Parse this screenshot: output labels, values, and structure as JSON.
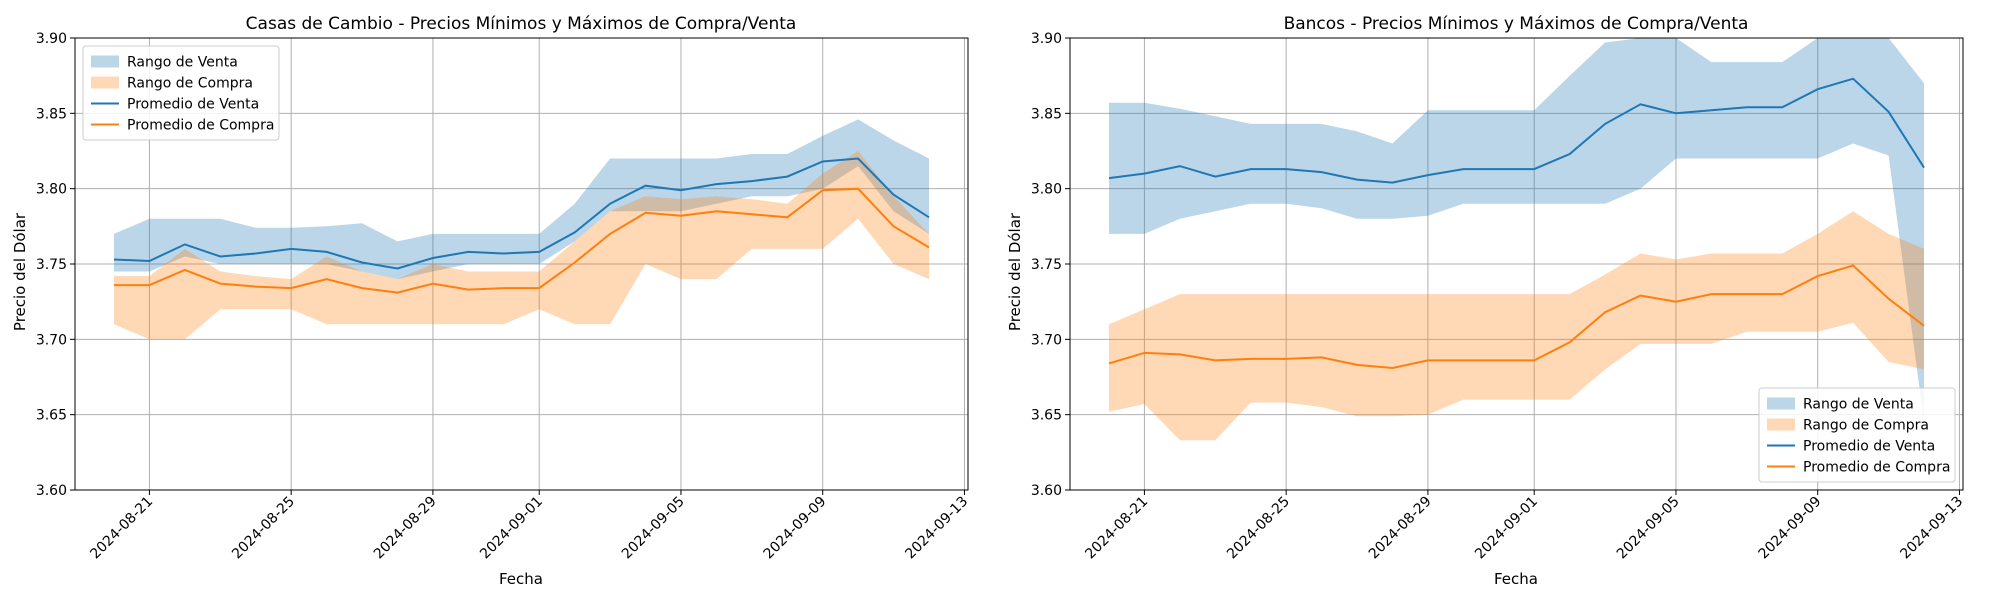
{
  "chart_data": [
    {
      "type": "area",
      "title": "Casas de Cambio - Precios Mínimos y Máximos de Compra/Venta",
      "xlabel": "Fecha",
      "ylabel": "Precio del Dólar",
      "ylim": [
        3.6,
        3.9
      ],
      "yticks": [
        "3.60",
        "3.65",
        "3.70",
        "3.75",
        "3.80",
        "3.85",
        "3.90"
      ],
      "xticks": [
        "2024-08-21",
        "2024-08-25",
        "2024-08-29",
        "2024-09-01",
        "2024-09-05",
        "2024-09-09",
        "2024-09-13"
      ],
      "grid": true,
      "legend_position": "upper-left",
      "x": [
        "2024-08-20",
        "2024-08-21",
        "2024-08-22",
        "2024-08-23",
        "2024-08-24",
        "2024-08-25",
        "2024-08-26",
        "2024-08-27",
        "2024-08-28",
        "2024-08-29",
        "2024-08-30",
        "2024-08-31",
        "2024-09-01",
        "2024-09-02",
        "2024-09-03",
        "2024-09-04",
        "2024-09-05",
        "2024-09-06",
        "2024-09-07",
        "2024-09-08",
        "2024-09-09",
        "2024-09-10",
        "2024-09-11",
        "2024-09-12"
      ],
      "bands": [
        {
          "name": "Rango de Venta",
          "color": "#1f77b4",
          "opacity": 0.3,
          "low": [
            3.745,
            3.745,
            3.755,
            3.75,
            3.75,
            3.75,
            3.75,
            3.745,
            3.74,
            3.745,
            3.75,
            3.75,
            3.75,
            3.765,
            3.785,
            3.785,
            3.785,
            3.79,
            3.795,
            3.795,
            3.8,
            3.815,
            3.785,
            3.77
          ],
          "high": [
            3.77,
            3.78,
            3.78,
            3.78,
            3.774,
            3.774,
            3.775,
            3.777,
            3.765,
            3.77,
            3.77,
            3.77,
            3.77,
            3.79,
            3.82,
            3.82,
            3.82,
            3.82,
            3.823,
            3.823,
            3.835,
            3.846,
            3.832,
            3.82
          ]
        },
        {
          "name": "Rango de Compra",
          "color": "#ff7f0e",
          "opacity": 0.3,
          "low": [
            3.71,
            3.7,
            3.7,
            3.72,
            3.72,
            3.72,
            3.71,
            3.71,
            3.71,
            3.71,
            3.71,
            3.71,
            3.72,
            3.71,
            3.71,
            3.75,
            3.74,
            3.74,
            3.76,
            3.76,
            3.76,
            3.78,
            3.75,
            3.74
          ],
          "high": [
            3.742,
            3.742,
            3.76,
            3.745,
            3.742,
            3.74,
            3.755,
            3.745,
            3.74,
            3.75,
            3.745,
            3.745,
            3.745,
            3.765,
            3.785,
            3.795,
            3.793,
            3.795,
            3.793,
            3.79,
            3.81,
            3.825,
            3.795,
            3.77
          ]
        }
      ],
      "series": [
        {
          "name": "Promedio de Venta",
          "color": "#1f77b4",
          "values": [
            3.753,
            3.752,
            3.763,
            3.755,
            3.757,
            3.76,
            3.758,
            3.751,
            3.747,
            3.754,
            3.758,
            3.757,
            3.758,
            3.771,
            3.79,
            3.802,
            3.799,
            3.803,
            3.805,
            3.808,
            3.818,
            3.82,
            3.796,
            3.781
          ]
        },
        {
          "name": "Promedio de Compra",
          "color": "#ff7f0e",
          "values": [
            3.736,
            3.736,
            3.746,
            3.737,
            3.735,
            3.734,
            3.74,
            3.734,
            3.731,
            3.737,
            3.733,
            3.734,
            3.734,
            3.751,
            3.77,
            3.784,
            3.782,
            3.785,
            3.783,
            3.781,
            3.799,
            3.8,
            3.775,
            3.761
          ]
        }
      ]
    },
    {
      "type": "area",
      "title": "Bancos - Precios Mínimos y Máximos de Compra/Venta",
      "xlabel": "Fecha",
      "ylabel": "Precio del Dólar",
      "ylim": [
        3.6,
        3.9
      ],
      "yticks": [
        "3.60",
        "3.65",
        "3.70",
        "3.75",
        "3.80",
        "3.85",
        "3.90"
      ],
      "xticks": [
        "2024-08-21",
        "2024-08-25",
        "2024-08-29",
        "2024-09-01",
        "2024-09-05",
        "2024-09-09",
        "2024-09-13"
      ],
      "grid": true,
      "legend_position": "lower-right",
      "x": [
        "2024-08-20",
        "2024-08-21",
        "2024-08-22",
        "2024-08-23",
        "2024-08-24",
        "2024-08-25",
        "2024-08-26",
        "2024-08-27",
        "2024-08-28",
        "2024-08-29",
        "2024-08-30",
        "2024-08-31",
        "2024-09-01",
        "2024-09-02",
        "2024-09-03",
        "2024-09-04",
        "2024-09-05",
        "2024-09-06",
        "2024-09-07",
        "2024-09-08",
        "2024-09-09",
        "2024-09-10",
        "2024-09-11",
        "2024-09-12"
      ],
      "bands": [
        {
          "name": "Rango de Venta",
          "color": "#1f77b4",
          "opacity": 0.3,
          "low": [
            3.77,
            3.77,
            3.78,
            3.785,
            3.79,
            3.79,
            3.787,
            3.78,
            3.78,
            3.782,
            3.79,
            3.79,
            3.79,
            3.79,
            3.79,
            3.8,
            3.82,
            3.82,
            3.82,
            3.82,
            3.82,
            3.83,
            3.822,
            3.645
          ],
          "high": [
            3.857,
            3.857,
            3.853,
            3.848,
            3.843,
            3.843,
            3.843,
            3.838,
            3.83,
            3.852,
            3.852,
            3.852,
            3.852,
            3.875,
            3.897,
            3.9,
            3.9,
            3.884,
            3.884,
            3.884,
            3.9,
            3.9,
            3.9,
            3.87
          ]
        },
        {
          "name": "Rango de Compra",
          "color": "#ff7f0e",
          "opacity": 0.3,
          "low": [
            3.652,
            3.657,
            3.633,
            3.633,
            3.658,
            3.658,
            3.655,
            3.649,
            3.649,
            3.65,
            3.66,
            3.66,
            3.66,
            3.66,
            3.68,
            3.697,
            3.697,
            3.697,
            3.705,
            3.705,
            3.705,
            3.711,
            3.685,
            3.68
          ],
          "high": [
            3.71,
            3.72,
            3.73,
            3.73,
            3.73,
            3.73,
            3.73,
            3.73,
            3.73,
            3.73,
            3.73,
            3.73,
            3.73,
            3.73,
            3.743,
            3.757,
            3.753,
            3.757,
            3.757,
            3.757,
            3.77,
            3.785,
            3.77,
            3.76
          ]
        }
      ],
      "series": [
        {
          "name": "Promedio de Venta",
          "color": "#1f77b4",
          "values": [
            3.807,
            3.81,
            3.815,
            3.808,
            3.813,
            3.813,
            3.811,
            3.806,
            3.804,
            3.809,
            3.813,
            3.813,
            3.813,
            3.823,
            3.843,
            3.856,
            3.85,
            3.852,
            3.854,
            3.854,
            3.866,
            3.873,
            3.851,
            3.814
          ]
        },
        {
          "name": "Promedio de Compra",
          "color": "#ff7f0e",
          "values": [
            3.684,
            3.691,
            3.69,
            3.686,
            3.687,
            3.687,
            3.688,
            3.683,
            3.681,
            3.686,
            3.686,
            3.686,
            3.686,
            3.698,
            3.718,
            3.729,
            3.725,
            3.73,
            3.73,
            3.73,
            3.742,
            3.749,
            3.727,
            3.709
          ]
        }
      ]
    }
  ]
}
